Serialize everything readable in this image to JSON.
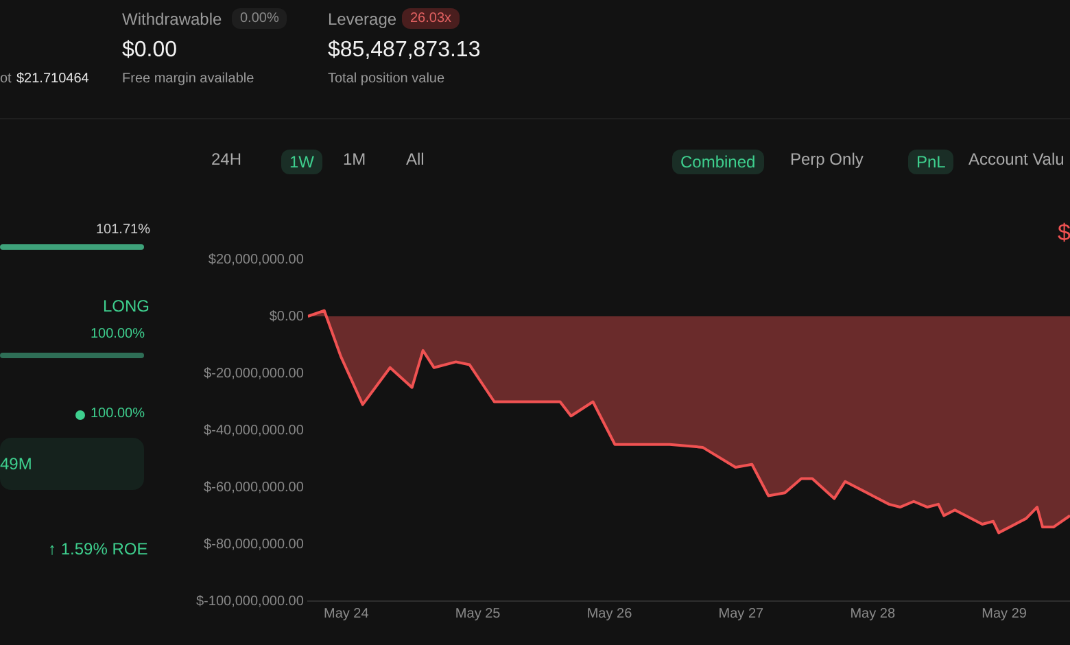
{
  "chart_data": [
    {
      "type": "other",
      "annotations": [
        "Withdrawable",
        "0.00%",
        "$0.00",
        "Free margin available",
        "Leverage",
        "26.03x",
        "$85,487,873.13",
        "Total position value",
        "ot",
        "$21.710464",
        "24H",
        "1W",
        "1M",
        "All",
        "Combined",
        "Perp Only",
        "PnL",
        "Account Valu",
        "101.71%",
        "LONG",
        "100.00%",
        "100.00%",
        "49M",
        "↑ 1.59% ROE",
        "$"
      ]
    },
    {
      "type": "area",
      "x": [
        "--05-23T17:00",
        "--05-23T20:00",
        "--05-23T23:00",
        "--05-24T03:00",
        "--05-24T08:00",
        "--05-24T12:00",
        "--05-24T14:00",
        "--05-24T16:00",
        "--05-24T20:00",
        "--05-24T22:30",
        "--05-25T03:00",
        "--05-25T15:00",
        "--05-25T17:00",
        "--05-25T21:00",
        "--05-26T01:00",
        "--05-26T11:00",
        "--05-26T17:00",
        "--05-26T23:00",
        "--05-27T02:00",
        "--05-27T05:00",
        "--05-27T08:00",
        "--05-27T11:00",
        "--05-27T13:00",
        "--05-27T17:00",
        "--05-27T19:00",
        "--05-28T00:00",
        "--05-28T03:00",
        "--05-28T05:00",
        "--05-28T07:30",
        "--05-28T10:00",
        "--05-28T12:00",
        "--05-28T13:00",
        "--05-28T15:00",
        "--05-28T20:00",
        "--05-28T22:00",
        "--05-28T23:00",
        "--05-29T04:00",
        "--05-29T06:00",
        "--05-29T07:00",
        "--05-29T09:00",
        "--05-29T12:00"
      ],
      "series": [
        {
          "color": "#f05252",
          "values": [
            0,
            2000000,
            -14000000,
            -31000000,
            -18000000,
            -25000000,
            -12000000,
            -18000000,
            -16000000,
            -17000000,
            -30000000,
            -30000000,
            -35000000,
            -30000000,
            -45000000,
            -45000000,
            -46000000,
            -53000000,
            -52000000,
            -63000000,
            -62000000,
            -57000000,
            -57000000,
            -64000000,
            -58000000,
            -63000000,
            -66000000,
            -67000000,
            -65000000,
            -67000000,
            -66000000,
            -70000000,
            -68000000,
            -73000000,
            -72000000,
            -76000000,
            -71000000,
            -67000000,
            -74000000,
            -74000000,
            -70000000
          ]
        }
      ],
      "xticks": [
        {
          "value": "--05-24",
          "label": "May 24"
        },
        {
          "value": "--05-25",
          "label": "May 25"
        },
        {
          "value": "--05-26",
          "label": "May 26"
        },
        {
          "value": "--05-27",
          "label": "May 27"
        },
        {
          "value": "--05-28",
          "label": "May 28"
        },
        {
          "value": "--05-29",
          "label": "May 29"
        }
      ],
      "ylim": [
        -100000000,
        20000000
      ],
      "yticks": [
        {
          "value": 20000000,
          "label": "$20,000,000.00"
        },
        {
          "value": 0,
          "label": "$0.00"
        },
        {
          "value": -20000000,
          "label": "$-20,000,000.00"
        },
        {
          "value": -40000000,
          "label": "$-40,000,000.00"
        },
        {
          "value": -60000000,
          "label": "$-60,000,000.00"
        },
        {
          "value": -80000000,
          "label": "$-80,000,000.00"
        },
        {
          "value": -100000000,
          "label": "$-100,000,000.00"
        }
      ],
      "xlim": [
        "--05-23T17:00",
        "--05-29T12:00"
      ],
      "grid": false,
      "legend": false,
      "line_style": "solid"
    }
  ]
}
